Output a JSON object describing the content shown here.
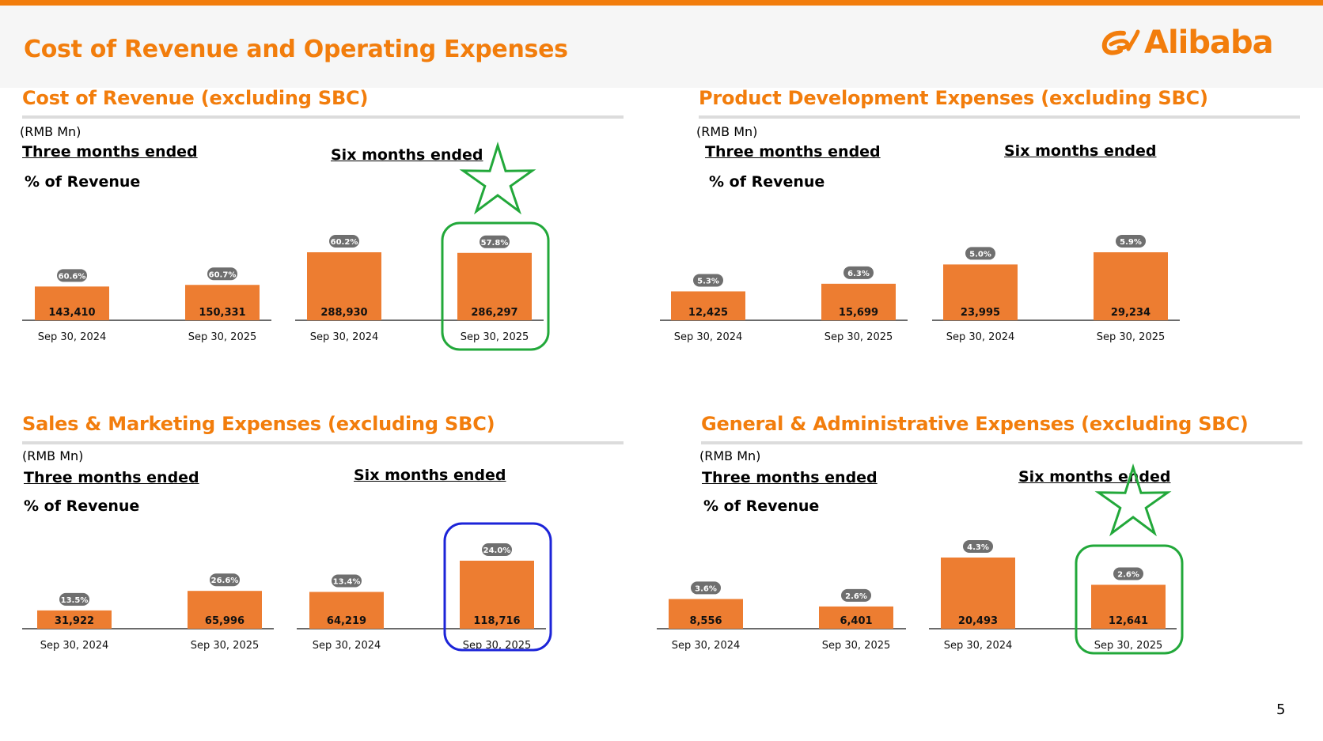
{
  "page": {
    "title": "Cost of Revenue and Operating Expenses",
    "logo_text": "Alibaba",
    "page_number": "5",
    "brand_color": "#f27d0c",
    "bar_color": "#ed7d31",
    "pill_color": "#6f6f6f",
    "highlight_green": "#22a83a",
    "highlight_blue": "#1c24d8"
  },
  "panels": [
    {
      "title": "Cost of Revenue (excluding SBC)",
      "unit": "(RMB Mn)",
      "three_months": "Three months ended",
      "six_months": "Six months ended",
      "pct_label": "% of Revenue"
    },
    {
      "title": "Product Development Expenses (excluding SBC)",
      "unit": "(RMB Mn)",
      "three_months": "Three months ended",
      "six_months": "Six months ended",
      "pct_label": "% of Revenue"
    },
    {
      "title": "Sales & Marketing Expenses (excluding SBC)",
      "unit": "(RMB Mn)",
      "three_months": "Three months ended",
      "six_months": "Six months ended",
      "pct_label": "% of Revenue"
    },
    {
      "title": "General & Administrative Expenses (excluding SBC)",
      "unit": "(RMB Mn)",
      "three_months": "Three months ended",
      "six_months": "Six months ended",
      "pct_label": "% of Revenue"
    }
  ],
  "chart_data": [
    {
      "type": "bar",
      "title": "Cost of Revenue (excluding SBC)",
      "unit": "RMB Mn",
      "groups": [
        {
          "name": "Three months ended",
          "categories": [
            "Sep 30, 2024",
            "Sep 30, 2025"
          ],
          "values": [
            143410,
            150331
          ],
          "value_labels": [
            "143,410",
            "150,331"
          ],
          "pct_of_revenue": [
            "60.6%",
            "60.7%"
          ]
        },
        {
          "name": "Six months ended",
          "categories": [
            "Sep 30, 2024",
            "Sep 30, 2025"
          ],
          "values": [
            288930,
            286297
          ],
          "value_labels": [
            "288,930",
            "286,297"
          ],
          "pct_of_revenue": [
            "60.2%",
            "57.8%"
          ]
        }
      ],
      "highlight": {
        "bar": "Six months ended, Sep 30, 2025",
        "color": "green",
        "star": true
      }
    },
    {
      "type": "bar",
      "title": "Product Development Expenses (excluding SBC)",
      "unit": "RMB Mn",
      "groups": [
        {
          "name": "Three months ended",
          "categories": [
            "Sep 30, 2024",
            "Sep 30, 2025"
          ],
          "values": [
            12425,
            15699
          ],
          "value_labels": [
            "12,425",
            "15,699"
          ],
          "pct_of_revenue": [
            "5.3%",
            "6.3%"
          ]
        },
        {
          "name": "Six months ended",
          "categories": [
            "Sep 30, 2024",
            "Sep 30, 2025"
          ],
          "values": [
            23995,
            29234
          ],
          "value_labels": [
            "23,995",
            "29,234"
          ],
          "pct_of_revenue": [
            "5.0%",
            "5.9%"
          ]
        }
      ]
    },
    {
      "type": "bar",
      "title": "Sales & Marketing Expenses (excluding SBC)",
      "unit": "RMB Mn",
      "groups": [
        {
          "name": "Three months ended",
          "categories": [
            "Sep 30, 2024",
            "Sep 30, 2025"
          ],
          "values": [
            31922,
            65996
          ],
          "value_labels": [
            "31,922",
            "65,996"
          ],
          "pct_of_revenue": [
            "13.5%",
            "26.6%"
          ]
        },
        {
          "name": "Six months ended",
          "categories": [
            "Sep 30, 2024",
            "Sep 30, 2025"
          ],
          "values": [
            64219,
            118716
          ],
          "value_labels": [
            "64,219",
            "118,716"
          ],
          "pct_of_revenue": [
            "13.4%",
            "24.0%"
          ]
        }
      ],
      "highlight": {
        "bar": "Six months ended, Sep 30, 2025",
        "color": "blue",
        "star": false
      }
    },
    {
      "type": "bar",
      "title": "General & Administrative Expenses (excluding SBC)",
      "unit": "RMB Mn",
      "groups": [
        {
          "name": "Three months ended",
          "categories": [
            "Sep 30, 2024",
            "Sep 30, 2025"
          ],
          "values": [
            8556,
            6401
          ],
          "value_labels": [
            "8,556",
            "6,401"
          ],
          "pct_of_revenue": [
            "3.6%",
            "2.6%"
          ]
        },
        {
          "name": "Six months ended",
          "categories": [
            "Sep 30, 2024",
            "Sep 30, 2025"
          ],
          "values": [
            20493,
            12641
          ],
          "value_labels": [
            "20,493",
            "12,641"
          ],
          "pct_of_revenue": [
            "4.3%",
            "2.6%"
          ]
        }
      ],
      "highlight": {
        "bar": "Six months ended, Sep 30, 2025",
        "color": "green",
        "star": true
      }
    }
  ]
}
